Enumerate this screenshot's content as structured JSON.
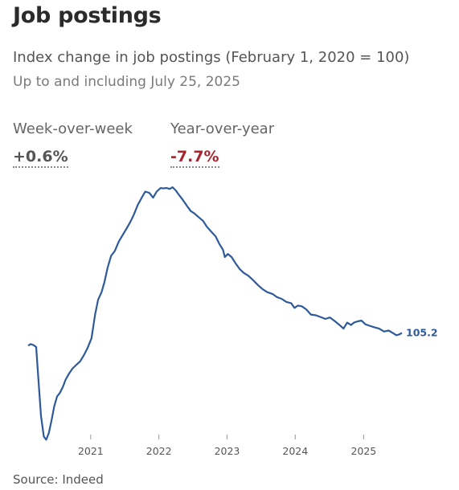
{
  "header": {
    "title": "Job postings",
    "subtitle": "Index change in job postings (February 1, 2020 = 100)",
    "date_note": "Up to and including July 25, 2025"
  },
  "stats": {
    "wow_label": "Week-over-week",
    "wow_value": "+0.6%",
    "yoy_label": "Year-over-year",
    "yoy_value": "-7.7%"
  },
  "colors": {
    "line": "#2e5a9c",
    "negative": "#a8262f"
  },
  "source": "Source: Indeed",
  "chart_data": {
    "type": "line",
    "title": "Job postings",
    "xlabel": "",
    "ylabel": "",
    "x_ticks": [
      "2021",
      "2022",
      "2023",
      "2024",
      "2025"
    ],
    "ylim": [
      60,
      165
    ],
    "end_label": "105.2",
    "series": [
      {
        "values": [
          [
            "2020-02-01",
            100
          ],
          [
            "2020-02-15",
            100.6
          ],
          [
            "2020-03-01",
            100.2
          ],
          [
            "2020-03-15",
            99.4
          ],
          [
            "2020-03-28",
            85
          ],
          [
            "2020-04-10",
            71
          ],
          [
            "2020-04-25",
            62.5
          ],
          [
            "2020-05-08",
            61.2
          ],
          [
            "2020-05-22",
            64
          ],
          [
            "2020-06-05",
            69
          ],
          [
            "2020-06-20",
            75
          ],
          [
            "2020-07-05",
            79
          ],
          [
            "2020-07-20",
            80.5
          ],
          [
            "2020-08-05",
            83
          ],
          [
            "2020-08-20",
            86
          ],
          [
            "2020-09-05",
            88.2
          ],
          [
            "2020-09-25",
            90.5
          ],
          [
            "2020-10-15",
            92
          ],
          [
            "2020-11-05",
            93.5
          ],
          [
            "2020-11-25",
            96
          ],
          [
            "2020-12-15",
            99
          ],
          [
            "2021-01-05",
            103
          ],
          [
            "2021-01-25",
            113
          ],
          [
            "2021-02-10",
            119
          ],
          [
            "2021-02-28",
            122
          ],
          [
            "2021-03-15",
            126
          ],
          [
            "2021-04-01",
            132
          ],
          [
            "2021-04-20",
            137
          ],
          [
            "2021-05-10",
            139
          ],
          [
            "2021-06-01",
            143
          ],
          [
            "2021-06-20",
            145.5
          ],
          [
            "2021-07-10",
            148
          ],
          [
            "2021-08-01",
            151
          ],
          [
            "2021-08-20",
            154
          ],
          [
            "2021-09-10",
            158
          ],
          [
            "2021-10-01",
            161
          ],
          [
            "2021-10-20",
            163.5
          ],
          [
            "2021-11-10",
            163
          ],
          [
            "2021-12-01",
            161
          ],
          [
            "2021-12-20",
            163.5
          ],
          [
            "2022-01-10",
            165
          ],
          [
            "2022-01-25",
            164.8
          ],
          [
            "2022-02-10",
            165
          ],
          [
            "2022-02-28",
            164.6
          ],
          [
            "2022-03-15",
            165.3
          ],
          [
            "2022-04-01",
            164
          ],
          [
            "2022-04-20",
            162
          ],
          [
            "2022-05-10",
            160
          ],
          [
            "2022-06-01",
            157.5
          ],
          [
            "2022-06-20",
            155.5
          ],
          [
            "2022-07-10",
            154.5
          ],
          [
            "2022-08-01",
            153
          ],
          [
            "2022-08-25",
            151.5
          ],
          [
            "2022-09-15",
            149
          ],
          [
            "2022-10-10",
            146.8
          ],
          [
            "2022-11-01",
            145
          ],
          [
            "2022-11-20",
            142
          ],
          [
            "2022-12-10",
            139.5
          ],
          [
            "2022-12-20",
            136.5
          ],
          [
            "2023-01-05",
            137.8
          ],
          [
            "2023-01-25",
            136.5
          ],
          [
            "2023-02-15",
            134
          ],
          [
            "2023-03-10",
            131.5
          ],
          [
            "2023-03-31",
            130
          ],
          [
            "2023-04-25",
            128.8
          ],
          [
            "2023-05-20",
            127
          ],
          [
            "2023-06-15",
            125
          ],
          [
            "2023-07-10",
            123.3
          ],
          [
            "2023-08-05",
            122
          ],
          [
            "2023-09-01",
            121.3
          ],
          [
            "2023-09-25",
            120
          ],
          [
            "2023-10-20",
            119.3
          ],
          [
            "2023-11-15",
            118
          ],
          [
            "2023-12-10",
            117.5
          ],
          [
            "2023-12-28",
            115.5
          ],
          [
            "2024-01-15",
            116.5
          ],
          [
            "2024-02-05",
            116.2
          ],
          [
            "2024-02-28",
            115
          ],
          [
            "2024-03-25",
            112.8
          ],
          [
            "2024-04-20",
            112.5
          ],
          [
            "2024-05-15",
            111.8
          ],
          [
            "2024-06-10",
            111
          ],
          [
            "2024-07-05",
            111.6
          ],
          [
            "2024-08-01",
            110
          ],
          [
            "2024-08-25",
            108.5
          ],
          [
            "2024-09-15",
            107
          ],
          [
            "2024-10-05",
            109.5
          ],
          [
            "2024-10-25",
            108.5
          ],
          [
            "2024-11-10",
            109.5
          ],
          [
            "2024-12-01",
            110
          ],
          [
            "2024-12-20",
            110.3
          ],
          [
            "2025-01-10",
            108.8
          ],
          [
            "2025-02-01",
            108.2
          ],
          [
            "2025-03-01",
            107.5
          ],
          [
            "2025-03-25",
            107
          ],
          [
            "2025-04-20",
            105.8
          ],
          [
            "2025-05-15",
            106.2
          ],
          [
            "2025-06-10",
            105
          ],
          [
            "2025-06-25",
            104.3
          ],
          [
            "2025-07-10",
            104.6
          ],
          [
            "2025-07-25",
            105.2
          ]
        ]
      }
    ]
  }
}
